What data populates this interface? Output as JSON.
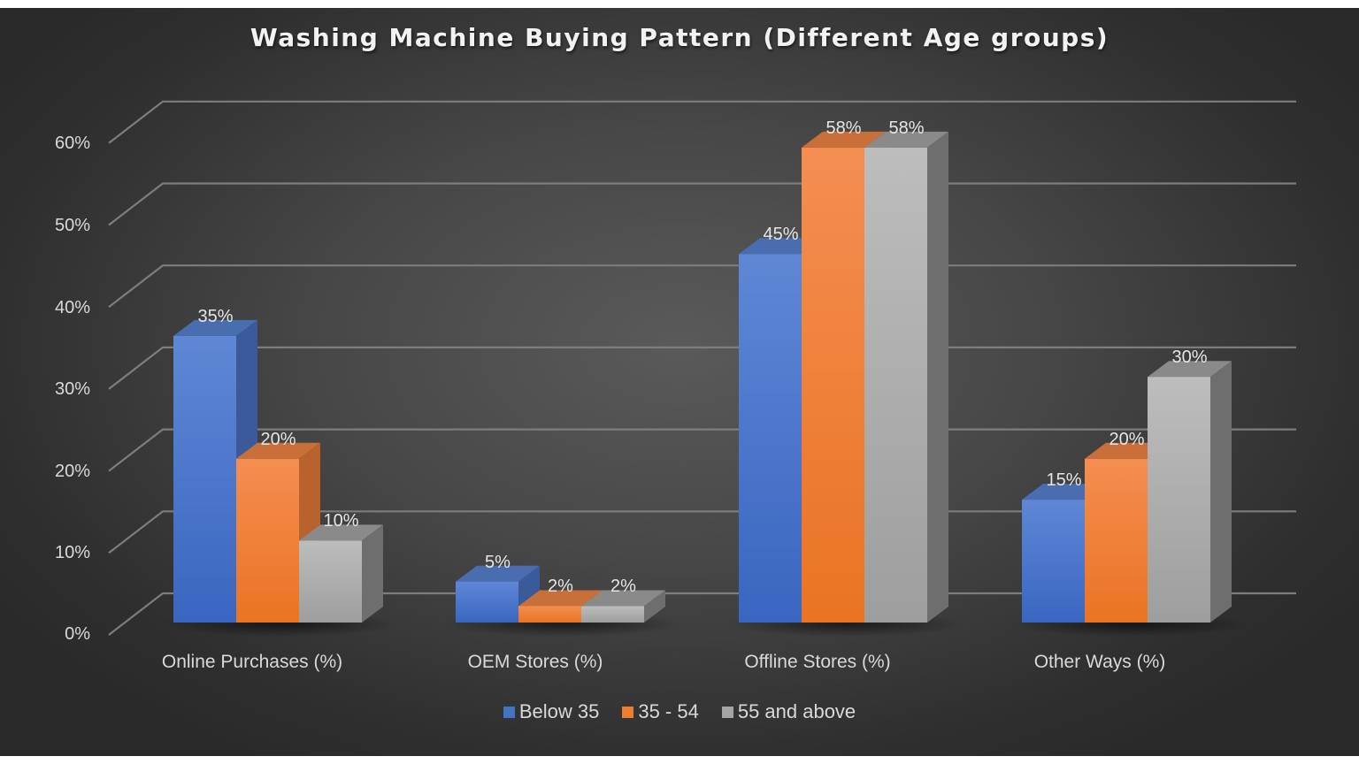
{
  "chart_data": {
    "type": "bar",
    "style": "3d-clustered-column",
    "title": "Washing Machine Buying Pattern (Different Age groups)",
    "xlabel": "",
    "ylabel": "",
    "categories": [
      "Online Purchases (%)",
      "OEM Stores (%)",
      "Offline Stores (%)",
      "Other Ways (%)"
    ],
    "series": [
      {
        "name": "Below 35",
        "color": "#4472c4",
        "values": [
          35,
          5,
          45,
          15
        ],
        "labels": [
          "35%",
          "5%",
          "45%",
          "15%"
        ]
      },
      {
        "name": "35 - 54",
        "color": "#ed7d31",
        "values": [
          20,
          2,
          58,
          20
        ],
        "labels": [
          "20%",
          "2%",
          "58%",
          "20%"
        ]
      },
      {
        "name": "55 and above",
        "color": "#a5a5a5",
        "values": [
          10,
          2,
          58,
          30
        ],
        "labels": [
          "10%",
          "2%",
          "58%",
          "30%"
        ]
      }
    ],
    "yticks": [
      "0%",
      "10%",
      "20%",
      "30%",
      "40%",
      "50%",
      "60%"
    ],
    "ylim": [
      0,
      60
    ],
    "grid": true,
    "legend_position": "bottom"
  },
  "chart": {
    "title": "Washing Machine Buying Pattern (Different Age groups)",
    "y_ticks": [
      "0%",
      "10%",
      "20%",
      "30%",
      "40%",
      "50%",
      "60%"
    ],
    "categories": [
      "Online Purchases (%)",
      "OEM Stores (%)",
      "Offline Stores (%)",
      "Other Ways (%)"
    ],
    "legend": [
      {
        "label": "Below 35",
        "color": "#4472c4"
      },
      {
        "label": "35 - 54",
        "color": "#ed7d31"
      },
      {
        "label": "55 and above",
        "color": "#a5a5a5"
      }
    ],
    "data_labels": [
      [
        "35%",
        "20%",
        "10%"
      ],
      [
        "5%",
        "2%",
        "2%"
      ],
      [
        "45%",
        "58%",
        "58%"
      ],
      [
        "15%",
        "20%",
        "30%"
      ]
    ]
  }
}
